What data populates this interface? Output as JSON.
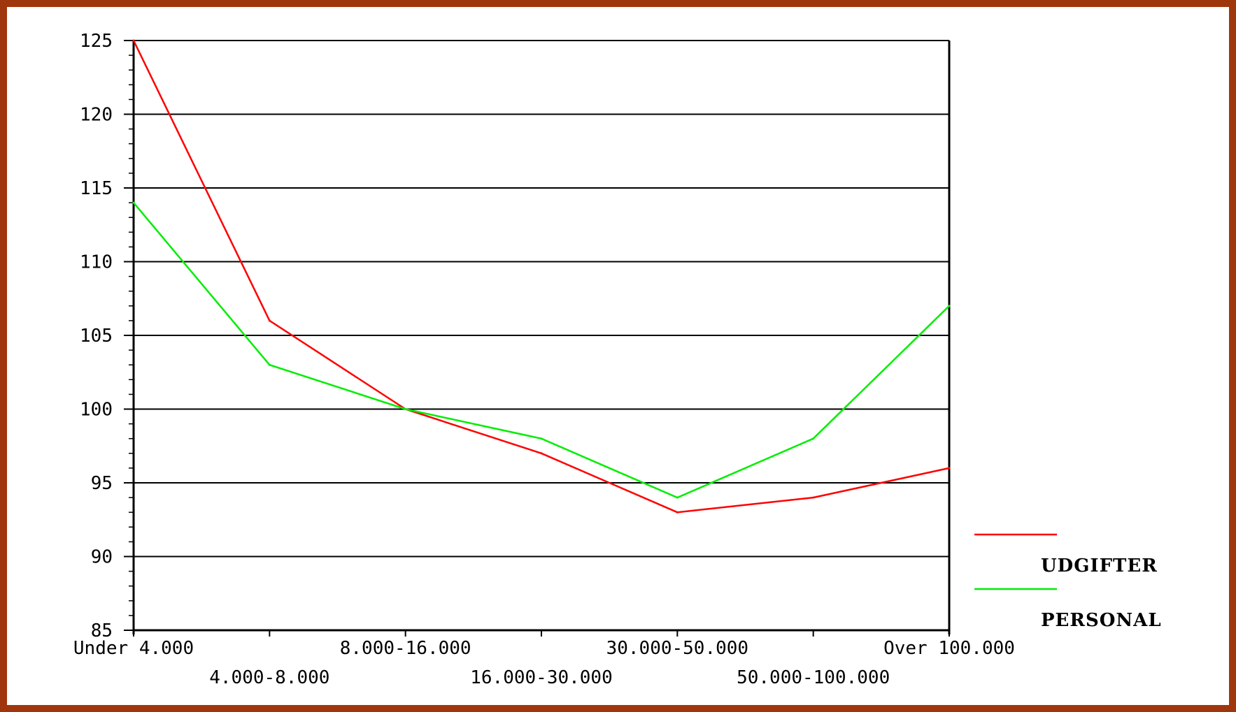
{
  "chart_data": {
    "type": "line",
    "title": "",
    "xlabel": "",
    "ylabel": "",
    "categories": [
      "Under 4.000",
      "4.000-8.000",
      "8.000-16.000",
      "16.000-30.000",
      "30.000-50.000",
      "50.000-100.000",
      "Over 100.000"
    ],
    "ylim": [
      85,
      125
    ],
    "yticks": [
      85,
      90,
      95,
      100,
      105,
      110,
      115,
      120,
      125
    ],
    "grid": true,
    "legend_position": "right",
    "series": [
      {
        "name": "UDGIFTER",
        "color": "#ff0000",
        "values": [
          125,
          106,
          100,
          97,
          93,
          94,
          96
        ]
      },
      {
        "name": "PERSONAL",
        "color": "#00ee00",
        "values": [
          114,
          103,
          100,
          98,
          94,
          98,
          107
        ]
      }
    ]
  },
  "colors": {
    "frame": "#a0360c",
    "background": "#ffffff",
    "grid": "#000000"
  }
}
